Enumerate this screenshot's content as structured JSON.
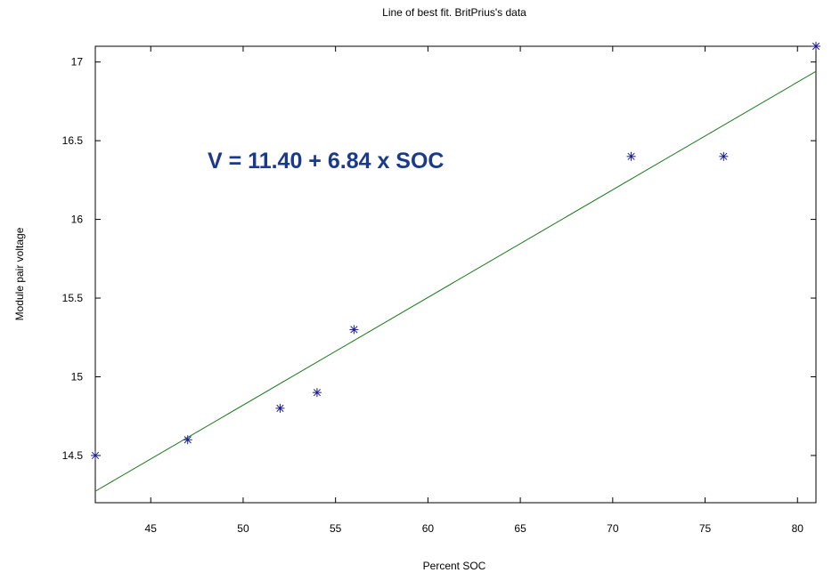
{
  "chart_data": {
    "type": "scatter",
    "title": "Line of best fit. BritPrius's data",
    "xlabel": "Percent SOC",
    "ylabel": "Module pair voltage",
    "xlim": [
      42,
      81
    ],
    "ylim": [
      14.2,
      17.1
    ],
    "xticks": [
      45,
      50,
      55,
      60,
      65,
      70,
      75,
      80
    ],
    "yticks": [
      14.5,
      15,
      15.5,
      16,
      16.5,
      17
    ],
    "grid": false,
    "annotation": "V = 11.40 + 6.84 x SOC",
    "series": [
      {
        "type": "scatter",
        "marker": "asterisk",
        "color": "#1a1a8c",
        "points": [
          {
            "x": 42,
            "y": 14.5
          },
          {
            "x": 47,
            "y": 14.6
          },
          {
            "x": 52,
            "y": 14.8
          },
          {
            "x": 54,
            "y": 14.9
          },
          {
            "x": 56,
            "y": 15.3
          },
          {
            "x": 71,
            "y": 16.4
          },
          {
            "x": 76,
            "y": 16.4
          },
          {
            "x": 81,
            "y": 17.1
          }
        ]
      },
      {
        "type": "line",
        "color": "#1a7a1a",
        "intercept": 11.4,
        "slope": 0.0684
      }
    ],
    "annotation_color": "#1a3a8c"
  }
}
